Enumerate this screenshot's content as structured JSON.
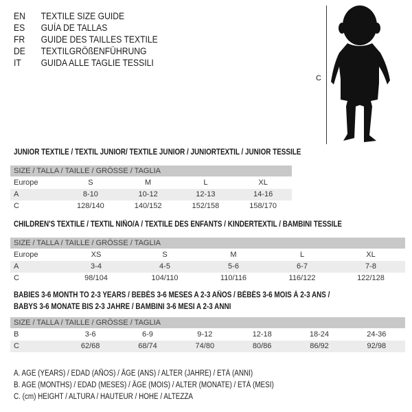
{
  "languages": [
    {
      "code": "EN",
      "text": "TEXTILE SIZE GUIDE"
    },
    {
      "code": "ES",
      "text": "GUÍA DE TALLAS"
    },
    {
      "code": "FR",
      "text": "GUIDE DES TAILLES TEXTILE"
    },
    {
      "code": "DE",
      "text": "TEXTILGRÖßENFÜHRUNG"
    },
    {
      "code": "IT",
      "text": "GUIDA ALLE TAGLIE TESSILI"
    }
  ],
  "figure": {
    "measure_label": "C",
    "icon": "child-silhouette"
  },
  "header_label": "SIZE / TALLA / TAILLE / GRÖSSE / TAGLIA",
  "junior": {
    "title": "JUNIOR TEXTILE / TEXTIL JUNIOR/ TEXTILE JUNIOR / JUNIORTEXTIL / JUNIOR TESSILE",
    "rows": [
      {
        "label": "Europe",
        "values": [
          "S",
          "M",
          "L",
          "XL"
        ]
      },
      {
        "label": "A",
        "values": [
          "8-10",
          "10-12",
          "12-13",
          "14-16"
        ]
      },
      {
        "label": "C",
        "values": [
          "128/140",
          "140/152",
          "152/158",
          "158/170"
        ]
      }
    ]
  },
  "children": {
    "title": "CHILDREN'S TEXTILE / TEXTIL NIÑO/A / TEXTILE DES ENFANTS / KINDERTEXTIL / BAMBINI TESSILE",
    "rows": [
      {
        "label": "Europe",
        "values": [
          "XS",
          "S",
          "M",
          "L",
          "XL"
        ]
      },
      {
        "label": "A",
        "values": [
          "3-4",
          "4-5",
          "5-6",
          "6-7",
          "7-8"
        ]
      },
      {
        "label": "C",
        "values": [
          "98/104",
          "104/110",
          "110/116",
          "116/122",
          "122/128"
        ]
      }
    ]
  },
  "babies": {
    "title_line1": "BABIES 3-6 MONTH TO 2-3 YEARS / BEBÉS 3-6 MESES A 2-3 AÑOS / BÉBÉS 3-6 MOIS À 2-3 ANS /",
    "title_line2": "BABYS 3-6 MONATE BIS 2-3 JAHRE / BAMBINI 3-6 MESI A 2-3 ANNI",
    "rows": [
      {
        "label": "B",
        "values": [
          "3-6",
          "6-9",
          "9-12",
          "12-18",
          "18-24",
          "24-36"
        ]
      },
      {
        "label": "C",
        "values": [
          "62/68",
          "68/74",
          "74/80",
          "80/86",
          "86/92",
          "92/98"
        ]
      }
    ]
  },
  "legend": [
    "A. AGE (YEARS) / EDAD (AÑOS) / ÂGE (ANS) / ALTER (JAHRE) / ETÀ (ANNI)",
    "B. AGE (MONTHS) / EDAD (MESES) / ÂGE (MOIS) / ALTER (MONATE) / ETÀ (MESI)",
    "C. (cm) HEIGHT / ALTURA / HAUTEUR / HÖHE / ALTEZZA"
  ]
}
